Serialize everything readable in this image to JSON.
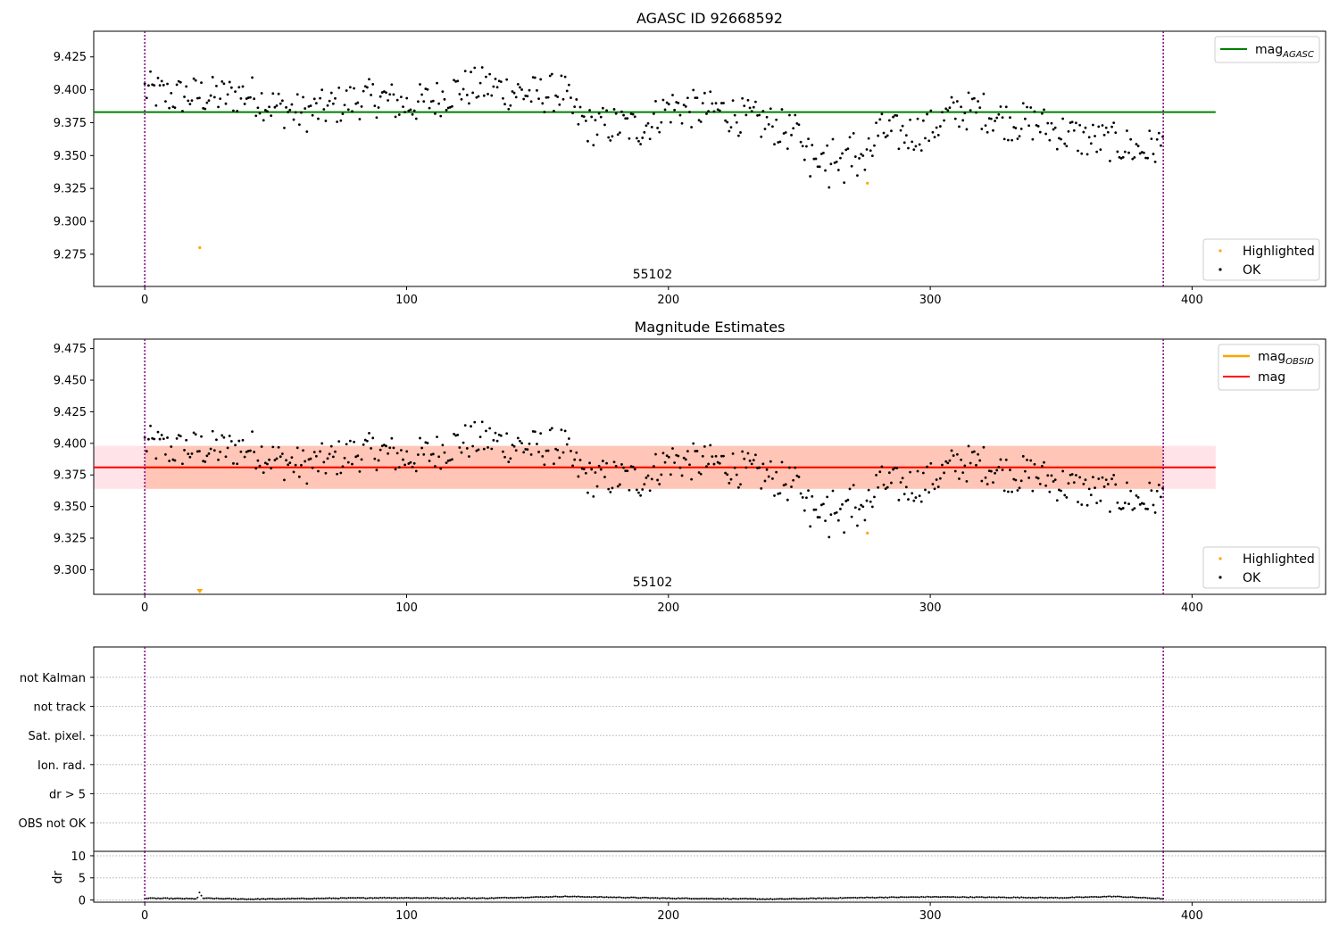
{
  "colors": {
    "ok": "#000000",
    "highlighted": "#ffa500",
    "mag_agasc": "#008000",
    "mag_obsid": "#ffa500",
    "mag": "#ff0000",
    "band_outer": "#ffc0cb",
    "band_inner": "#ffa07a",
    "interval": "#800080",
    "grid": "#b0b0b0"
  },
  "chart_data": [
    {
      "type": "scatter",
      "title": "AGASC ID 92668592",
      "xlim": [
        -19.5,
        451.0
      ],
      "ylim": [
        9.2505,
        9.4445
      ],
      "x_ticks": [
        0,
        100,
        200,
        300,
        400
      ],
      "y_ticks": [
        9.275,
        9.3,
        9.325,
        9.35,
        9.375,
        9.4,
        9.425
      ],
      "interval_lines_x": [
        0,
        389
      ],
      "reference_line": {
        "name": "mag",
        "subscript": "AGASC",
        "y": 9.383,
        "x_range": [
          -19.5,
          409
        ]
      },
      "obsid_label": {
        "text": "55102",
        "x": 194
      },
      "legend_top": "top-right",
      "legend_bottom": {
        "position": "bottom-right",
        "entries": [
          "Highlighted",
          "OK"
        ]
      },
      "highlighted_points": [
        [
          21,
          9.28
        ],
        [
          276,
          9.329
        ]
      ],
      "ok_series_anchors": [
        [
          0,
          9.4
        ],
        [
          10,
          9.395
        ],
        [
          20,
          9.396
        ],
        [
          30,
          9.395
        ],
        [
          40,
          9.397
        ],
        [
          50,
          9.387
        ],
        [
          60,
          9.382
        ],
        [
          70,
          9.386
        ],
        [
          80,
          9.392
        ],
        [
          90,
          9.394
        ],
        [
          100,
          9.388
        ],
        [
          110,
          9.392
        ],
        [
          120,
          9.401
        ],
        [
          130,
          9.403
        ],
        [
          140,
          9.399
        ],
        [
          150,
          9.396
        ],
        [
          160,
          9.399
        ],
        [
          163,
          9.384
        ],
        [
          170,
          9.372
        ],
        [
          180,
          9.373
        ],
        [
          190,
          9.371
        ],
        [
          200,
          9.387
        ],
        [
          210,
          9.385
        ],
        [
          220,
          9.384
        ],
        [
          230,
          9.378
        ],
        [
          240,
          9.373
        ],
        [
          250,
          9.365
        ],
        [
          255,
          9.355
        ],
        [
          260,
          9.352
        ],
        [
          270,
          9.355
        ],
        [
          275,
          9.35
        ],
        [
          280,
          9.368
        ],
        [
          290,
          9.366
        ],
        [
          300,
          9.37
        ],
        [
          310,
          9.384
        ],
        [
          320,
          9.384
        ],
        [
          330,
          9.376
        ],
        [
          340,
          9.375
        ],
        [
          350,
          9.368
        ],
        [
          360,
          9.362
        ],
        [
          370,
          9.36
        ],
        [
          380,
          9.354
        ],
        [
          389,
          9.358
        ]
      ]
    },
    {
      "type": "scatter",
      "title": "Magnitude Estimates",
      "xlim": [
        -19.5,
        451.0
      ],
      "ylim": [
        9.2805,
        9.4825
      ],
      "x_ticks": [
        0,
        100,
        200,
        300,
        400
      ],
      "y_ticks": [
        9.3,
        9.325,
        9.35,
        9.375,
        9.4,
        9.425,
        9.45,
        9.475
      ],
      "interval_lines_x": [
        0,
        389
      ],
      "mag_obsid": {
        "name": "mag",
        "subscript": "OBSID",
        "y": 9.381,
        "band": [
          9.364,
          9.398
        ],
        "x_range": [
          0,
          389
        ]
      },
      "mag": {
        "name": "mag",
        "y": 9.381,
        "band": [
          9.364,
          9.398
        ],
        "x_range": [
          -19.5,
          409
        ]
      },
      "obsid_label": {
        "text": "55102",
        "x": 194
      },
      "legend_top": "top-right",
      "legend_bottom": {
        "position": "bottom-right",
        "entries": [
          "Highlighted",
          "OK"
        ]
      },
      "highlighted_points": [
        [
          21,
          9.2805
        ],
        [
          276,
          9.329
        ]
      ],
      "ok_series": "same as panel 1"
    },
    {
      "type": "scatter",
      "xlim": [
        -19.5,
        451.0
      ],
      "categories": [
        "not Kalman",
        "not track",
        "Sat. pixel.",
        "Ion. rad.",
        "dr > 5",
        "OBS not OK"
      ],
      "interval_lines_x": [
        0,
        389
      ],
      "flagged_points": []
    },
    {
      "type": "scatter",
      "ylabel": "dr",
      "xlim": [
        -19.5,
        451.0
      ],
      "ylim": [
        -0.5,
        11
      ],
      "x_ticks": [
        0,
        100,
        200,
        300,
        400
      ],
      "y_ticks": [
        0,
        5,
        10
      ],
      "interval_lines_x": [
        0,
        389
      ],
      "gridlines_y": [
        0,
        5,
        10
      ],
      "dr_series_anchors": [
        [
          0,
          0.4
        ],
        [
          20,
          0.3
        ],
        [
          21,
          1.8
        ],
        [
          22,
          0.4
        ],
        [
          40,
          0.2
        ],
        [
          90,
          0.5
        ],
        [
          130,
          0.4
        ],
        [
          160,
          0.8
        ],
        [
          200,
          0.4
        ],
        [
          240,
          0.2
        ],
        [
          270,
          0.5
        ],
        [
          300,
          0.7
        ],
        [
          350,
          0.5
        ],
        [
          370,
          0.8
        ],
        [
          389,
          0.3
        ]
      ]
    }
  ]
}
